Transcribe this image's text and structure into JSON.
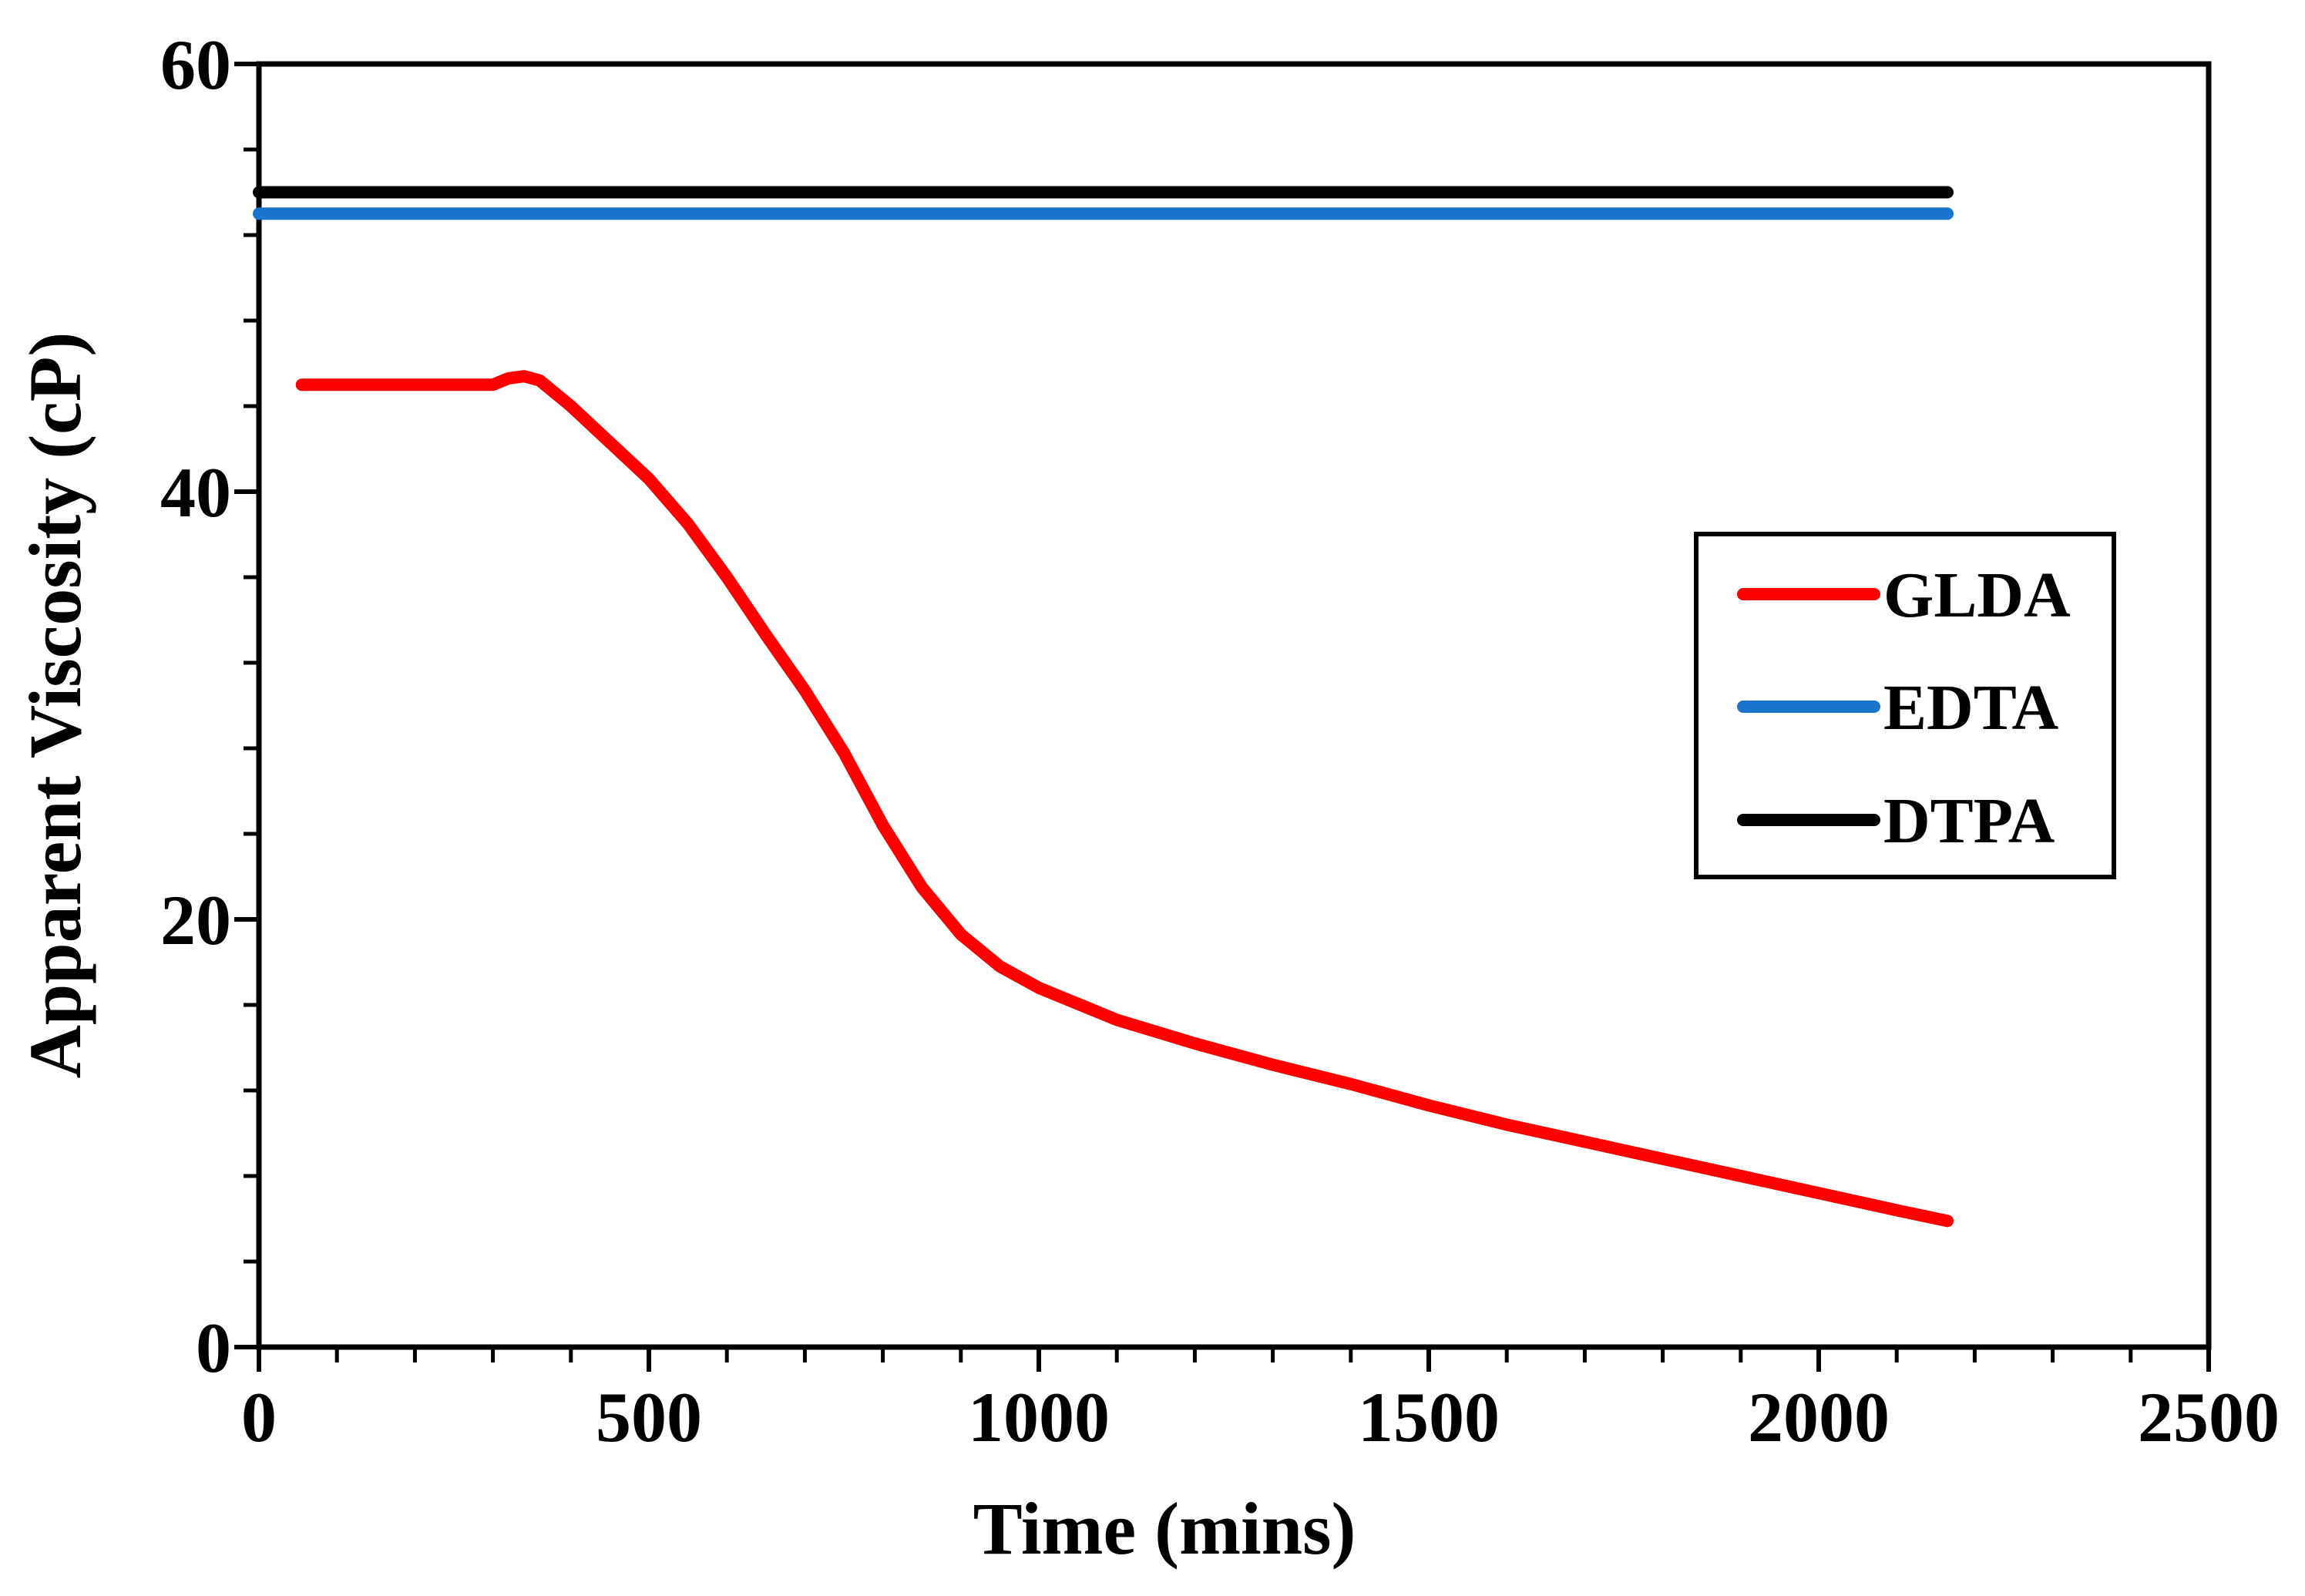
{
  "chart_data": {
    "type": "line",
    "title": "",
    "xlabel": "Time (mins)",
    "ylabel": "Apparent Viscosity (cP)",
    "xlim": [
      0,
      2500
    ],
    "ylim": [
      0,
      60
    ],
    "x_major_ticks": [
      0,
      500,
      1000,
      1500,
      2000,
      2500
    ],
    "x_tick_labels": [
      "0",
      "500",
      "1000",
      "1500",
      "2000",
      "2500"
    ],
    "x_minor_step": 100,
    "y_major_ticks": [
      0,
      20,
      40,
      60
    ],
    "y_tick_labels": [
      "0",
      "20",
      "40",
      "60"
    ],
    "y_minor_step": 4,
    "grid": false,
    "legend_position": "right",
    "series": [
      {
        "name": "GLDA",
        "color": "#ff0000",
        "x": [
          55,
          300,
          320,
          340,
          360,
          400,
          450,
          500,
          550,
          600,
          650,
          700,
          750,
          800,
          850,
          900,
          950,
          1000,
          1100,
          1200,
          1300,
          1400,
          1500,
          1600,
          1700,
          1800,
          1900,
          2000,
          2100,
          2165
        ],
        "y": [
          45.0,
          45.0,
          45.3,
          45.4,
          45.2,
          44.0,
          42.3,
          40.6,
          38.5,
          36.0,
          33.3,
          30.7,
          27.8,
          24.4,
          21.5,
          19.3,
          17.8,
          16.8,
          15.3,
          14.2,
          13.2,
          12.3,
          11.3,
          10.4,
          9.6,
          8.8,
          8.0,
          7.2,
          6.4,
          5.9
        ]
      },
      {
        "name": "EDTA",
        "color": "#1874cd",
        "x": [
          0,
          2165
        ],
        "y": [
          53.0,
          53.0
        ]
      },
      {
        "name": "DTPA",
        "color": "#000000",
        "x": [
          0,
          2165
        ],
        "y": [
          54.0,
          54.0
        ]
      }
    ]
  }
}
